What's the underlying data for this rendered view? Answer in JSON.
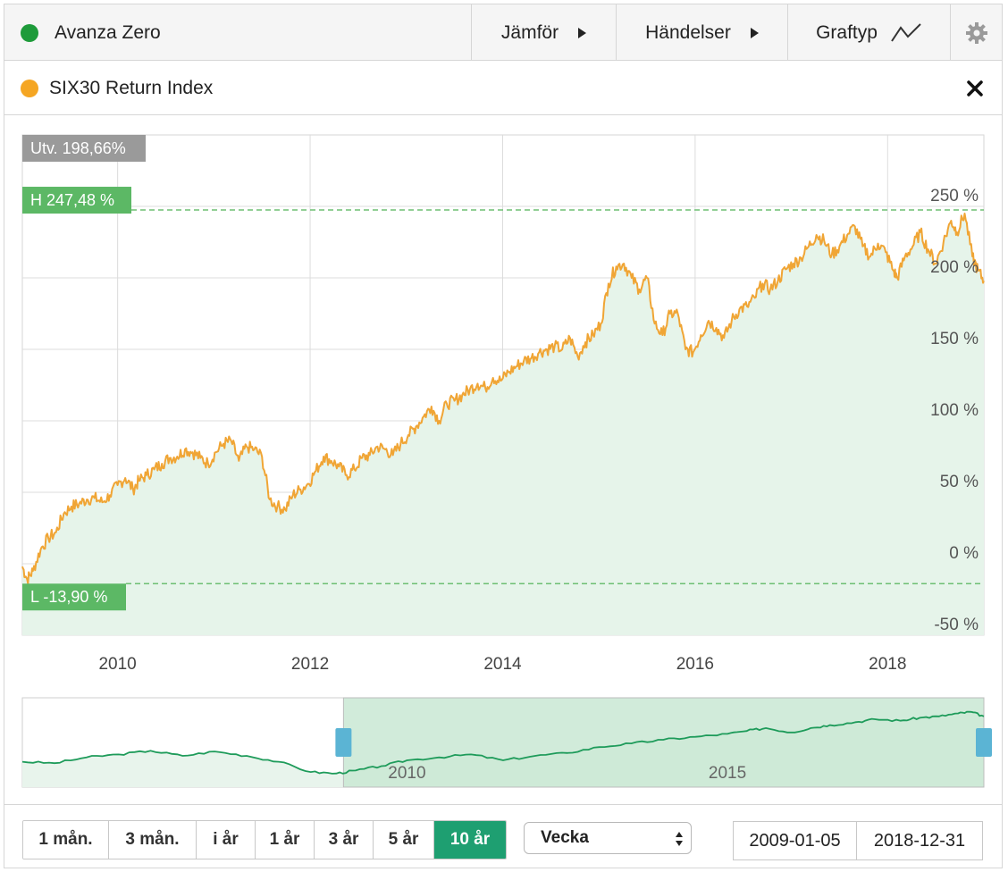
{
  "header": {
    "title": "Avanza Zero",
    "title_dot_color": "#1e9b3a",
    "compare_label": "Jämför",
    "events_label": "Händelser",
    "chart_type_label": "Graftyp"
  },
  "compare": {
    "series_label": "SIX30 Return Index",
    "dot_color": "#f5a623"
  },
  "chart_data": {
    "type": "area",
    "title": "",
    "xlabel": "",
    "ylabel": "",
    "x_ticks": [
      "2010",
      "2012",
      "2014",
      "2016",
      "2018"
    ],
    "y_ticks": [
      "250 %",
      "200 %",
      "150 %",
      "100 %",
      "50 %",
      "0 %",
      "-50 %"
    ],
    "y_tick_values": [
      250,
      200,
      150,
      100,
      50,
      0,
      -50
    ],
    "ylim": [
      -50,
      300
    ],
    "xlim": [
      2009.01,
      2019.0
    ],
    "grid": true,
    "legend": "none",
    "series": [
      {
        "name": "SIX30 Return Index",
        "color": "#f0a535",
        "fill": "#e6f4ea",
        "x": [
          2009.01,
          2009.06,
          2009.12,
          2009.2,
          2009.28,
          2009.36,
          2009.44,
          2009.52,
          2009.6,
          2009.68,
          2009.76,
          2009.84,
          2009.92,
          2010.0,
          2010.08,
          2010.16,
          2010.22,
          2010.3,
          2010.38,
          2010.46,
          2010.54,
          2010.62,
          2010.7,
          2010.78,
          2010.86,
          2010.94,
          2011.02,
          2011.1,
          2011.18,
          2011.26,
          2011.34,
          2011.42,
          2011.5,
          2011.58,
          2011.66,
          2011.74,
          2011.82,
          2011.9,
          2011.98,
          2012.06,
          2012.14,
          2012.22,
          2012.3,
          2012.38,
          2012.46,
          2012.54,
          2012.62,
          2012.7,
          2012.78,
          2012.86,
          2012.94,
          2013.02,
          2013.1,
          2013.18,
          2013.26,
          2013.34,
          2013.42,
          2013.5,
          2013.58,
          2013.66,
          2013.74,
          2013.82,
          2013.9,
          2013.98,
          2014.06,
          2014.14,
          2014.22,
          2014.3,
          2014.38,
          2014.46,
          2014.54,
          2014.62,
          2014.7,
          2014.78,
          2014.86,
          2014.94,
          2015.02,
          2015.1,
          2015.18,
          2015.26,
          2015.34,
          2015.42,
          2015.5,
          2015.58,
          2015.66,
          2015.74,
          2015.82,
          2015.9,
          2015.98,
          2016.06,
          2016.14,
          2016.22,
          2016.3,
          2016.38,
          2016.46,
          2016.54,
          2016.62,
          2016.7,
          2016.78,
          2016.86,
          2016.94,
          2017.02,
          2017.1,
          2017.18,
          2017.26,
          2017.34,
          2017.42,
          2017.5,
          2017.58,
          2017.66,
          2017.74,
          2017.82,
          2017.9,
          2017.98,
          2018.06,
          2018.1,
          2018.18,
          2018.26,
          2018.34,
          2018.42,
          2018.5,
          2018.58,
          2018.66,
          2018.72,
          2018.8,
          2018.88,
          2018.94,
          2019.0
        ],
        "values": [
          -2,
          -11,
          -5,
          10,
          18,
          22,
          35,
          40,
          42,
          45,
          46,
          43,
          48,
          55,
          60,
          52,
          58,
          62,
          66,
          70,
          74,
          75,
          80,
          78,
          74,
          70,
          78,
          84,
          86,
          72,
          82,
          80,
          75,
          45,
          40,
          38,
          48,
          52,
          56,
          65,
          75,
          72,
          68,
          62,
          66,
          74,
          76,
          82,
          80,
          76,
          84,
          90,
          96,
          103,
          110,
          100,
          112,
          114,
          118,
          122,
          126,
          123,
          130,
          128,
          134,
          138,
          142,
          144,
          148,
          150,
          152,
          150,
          158,
          145,
          155,
          160,
          168,
          196,
          208,
          210,
          200,
          192,
          200,
          168,
          160,
          175,
          175,
          150,
          148,
          160,
          170,
          165,
          158,
          170,
          178,
          180,
          186,
          196,
          192,
          198,
          206,
          210,
          214,
          222,
          230,
          226,
          216,
          222,
          230,
          236,
          222,
          215,
          224,
          218,
          205,
          200,
          215,
          222,
          232,
          220,
          210,
          225,
          240,
          232,
          245,
          215,
          205,
          198
        ]
      }
    ],
    "annotations": {
      "change_label": "Utv. 198,66%",
      "high_label": "H 247,48 %",
      "high_value": 247.48,
      "low_label": "L -13,90 %",
      "low_value": -13.9
    },
    "navigator": {
      "x_ticks": [
        "2010",
        "2015"
      ],
      "x_tick_values": [
        2010,
        2015
      ],
      "xlim": [
        2004.0,
        2019.0
      ],
      "selection": [
        2009.01,
        2019.0
      ],
      "x": [
        2004.0,
        2004.5,
        2005.0,
        2005.5,
        2006.0,
        2006.5,
        2007.0,
        2007.5,
        2008.0,
        2008.5,
        2008.9,
        2009.2,
        2009.6,
        2010.0,
        2010.5,
        2011.0,
        2011.5,
        2012.0,
        2012.5,
        2013.0,
        2013.5,
        2014.0,
        2014.5,
        2015.0,
        2015.3,
        2015.6,
        2016.0,
        2016.3,
        2016.6,
        2017.0,
        2017.3,
        2017.7,
        2018.0,
        2018.3,
        2018.6,
        2018.8,
        2019.0
      ],
      "values": [
        20,
        18,
        26,
        30,
        35,
        28,
        34,
        28,
        20,
        6,
        4,
        8,
        14,
        22,
        26,
        30,
        22,
        28,
        32,
        40,
        45,
        50,
        54,
        58,
        62,
        66,
        60,
        66,
        70,
        74,
        78,
        76,
        80,
        82,
        86,
        88,
        82
      ],
      "color": "#1e9b5a",
      "fill": "#c9e7d4",
      "handle_color": "#5bb4d4"
    }
  },
  "range_buttons": [
    "1 mån.",
    "3 mån.",
    "i år",
    "1 år",
    "3 år",
    "5 år",
    "10 år"
  ],
  "active_range_index": 6,
  "interval": {
    "selected": "Vecka"
  },
  "dates": {
    "from": "2009-01-05",
    "to": "2018-12-31"
  },
  "colors": {
    "label_gray": "#9a9a9a",
    "label_green": "#5cb865",
    "dashed_green": "#6dbf72",
    "grid": "#dcdcdc",
    "active_green": "#1e9f71"
  }
}
